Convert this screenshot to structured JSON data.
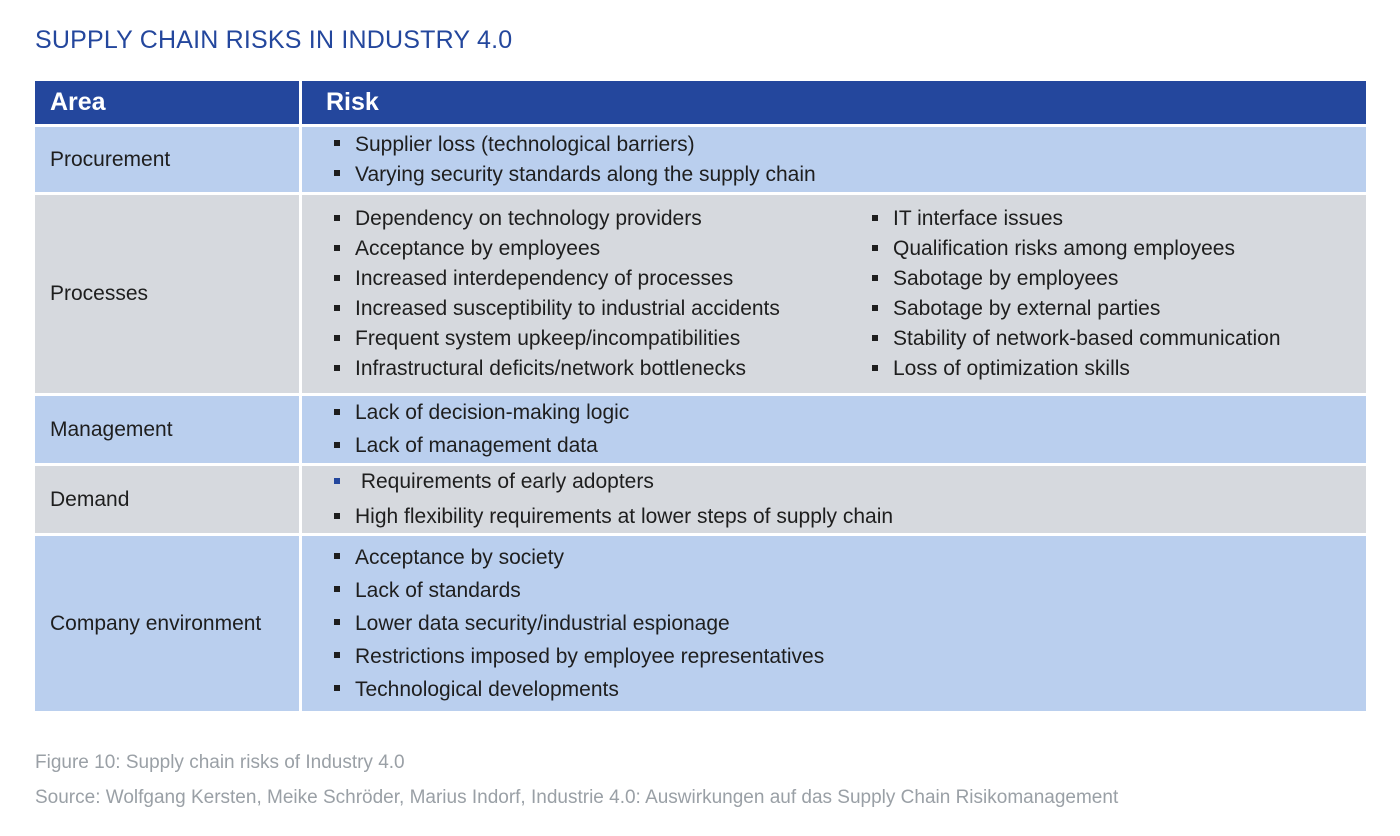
{
  "title": "SUPPLY CHAIN RISKS IN INDUSTRY 4.0",
  "table": {
    "headers": {
      "area": "Area",
      "risk": "Risk"
    },
    "rows": [
      {
        "area": "Procurement",
        "risks": [
          "Supplier loss (technological barriers)",
          "Varying security standards along the supply chain"
        ]
      },
      {
        "area": "Processes",
        "risks_col1": [
          "Dependency on technology providers",
          "Acceptance by employees",
          "Increased interdependency of processes",
          "Increased susceptibility to industrial accidents",
          "Frequent system upkeep/incompatibilities",
          "Infrastructural deficits/network bottlenecks"
        ],
        "risks_col2": [
          "IT interface issues",
          "Qualification risks among employees",
          "Sabotage by employees",
          "Sabotage by external parties",
          "Stability of network-based communication",
          "Loss of optimization skills"
        ]
      },
      {
        "area": "Management",
        "risks": [
          "Lack of decision-making logic",
          "Lack of management data"
        ]
      },
      {
        "area": "Demand",
        "risks": [
          " Requirements of early adopters",
          "High flexibility requirements at lower steps of supply chain"
        ]
      },
      {
        "area": "Company environment",
        "risks": [
          "Acceptance by society",
          "Lack of standards",
          "Lower data security/industrial espionage",
          "Restrictions imposed by employee representatives",
          "Technological developments"
        ]
      }
    ]
  },
  "caption": {
    "figure": "Figure 10: Supply chain risks of Industry 4.0",
    "source": "Source: Wolfgang Kersten, Meike Schröder, Marius Indorf, Industrie 4.0: Auswirkungen auf das Supply Chain Risikomanagement"
  },
  "colors": {
    "brand_blue": "#24479d",
    "row_blue": "#bacfee",
    "row_grey": "#d6d9de",
    "caption_grey": "#9aa0a6"
  }
}
